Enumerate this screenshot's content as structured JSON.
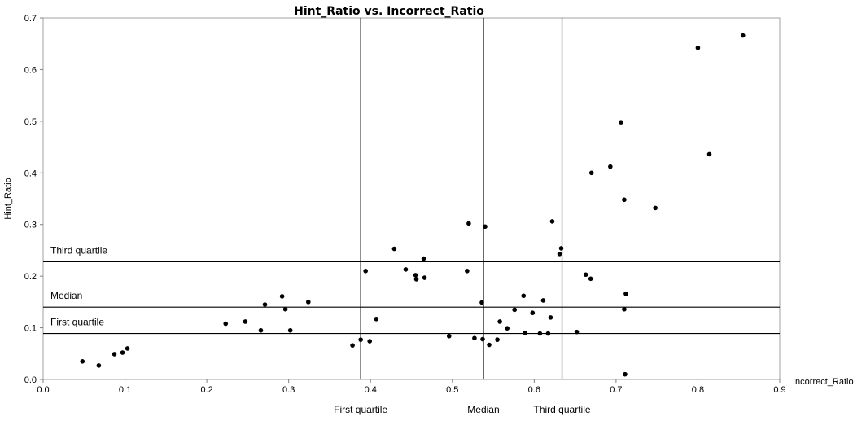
{
  "chart_data": {
    "type": "scatter",
    "title": "Hint_Ratio vs. Incorrect_Ratio",
    "xlabel": "Incorrect_Ratio",
    "ylabel": "Hint_Ratio",
    "xlim": [
      0,
      0.9
    ],
    "ylim": [
      0,
      0.7
    ],
    "x_ticks": [
      "0.0",
      "0.1",
      "0.2",
      "0.3",
      "0.4",
      "0.5",
      "0.6",
      "0.7",
      "0.8",
      "0.9"
    ],
    "y_ticks": [
      "0.0",
      "0.1",
      "0.2",
      "0.3",
      "0.4",
      "0.5",
      "0.6",
      "0.7"
    ],
    "grid": false,
    "reference_lines": {
      "vertical": [
        {
          "label": "First quartile",
          "x": 0.388
        },
        {
          "label": "Median",
          "x": 0.538
        },
        {
          "label": "Third quartile",
          "x": 0.634
        }
      ],
      "horizontal": [
        {
          "label": "Third quartile",
          "y": 0.228
        },
        {
          "label": "Median",
          "y": 0.14
        },
        {
          "label": "First quartile",
          "y": 0.089
        }
      ]
    },
    "points": [
      [
        0.048,
        0.035
      ],
      [
        0.068,
        0.027
      ],
      [
        0.087,
        0.049
      ],
      [
        0.097,
        0.052
      ],
      [
        0.103,
        0.06
      ],
      [
        0.223,
        0.108
      ],
      [
        0.247,
        0.112
      ],
      [
        0.266,
        0.095
      ],
      [
        0.271,
        0.145
      ],
      [
        0.292,
        0.161
      ],
      [
        0.296,
        0.136
      ],
      [
        0.302,
        0.095
      ],
      [
        0.324,
        0.15
      ],
      [
        0.378,
        0.066
      ],
      [
        0.388,
        0.077
      ],
      [
        0.394,
        0.21
      ],
      [
        0.399,
        0.074
      ],
      [
        0.407,
        0.117
      ],
      [
        0.429,
        0.253
      ],
      [
        0.443,
        0.213
      ],
      [
        0.455,
        0.202
      ],
      [
        0.456,
        0.194
      ],
      [
        0.465,
        0.234
      ],
      [
        0.466,
        0.197
      ],
      [
        0.496,
        0.084
      ],
      [
        0.518,
        0.21
      ],
      [
        0.52,
        0.302
      ],
      [
        0.527,
        0.08
      ],
      [
        0.536,
        0.149
      ],
      [
        0.537,
        0.078
      ],
      [
        0.54,
        0.296
      ],
      [
        0.545,
        0.067
      ],
      [
        0.555,
        0.077
      ],
      [
        0.558,
        0.112
      ],
      [
        0.567,
        0.099
      ],
      [
        0.576,
        0.135
      ],
      [
        0.587,
        0.162
      ],
      [
        0.589,
        0.09
      ],
      [
        0.598,
        0.129
      ],
      [
        0.607,
        0.089
      ],
      [
        0.611,
        0.153
      ],
      [
        0.617,
        0.089
      ],
      [
        0.62,
        0.12
      ],
      [
        0.622,
        0.306
      ],
      [
        0.631,
        0.243
      ],
      [
        0.633,
        0.254
      ],
      [
        0.652,
        0.092
      ],
      [
        0.663,
        0.203
      ],
      [
        0.669,
        0.195
      ],
      [
        0.67,
        0.4
      ],
      [
        0.693,
        0.412
      ],
      [
        0.706,
        0.498
      ],
      [
        0.71,
        0.348
      ],
      [
        0.71,
        0.136
      ],
      [
        0.711,
        0.01
      ],
      [
        0.712,
        0.166
      ],
      [
        0.748,
        0.332
      ],
      [
        0.8,
        0.642
      ],
      [
        0.814,
        0.436
      ],
      [
        0.855,
        0.666
      ]
    ],
    "marker_color": "#000000"
  }
}
